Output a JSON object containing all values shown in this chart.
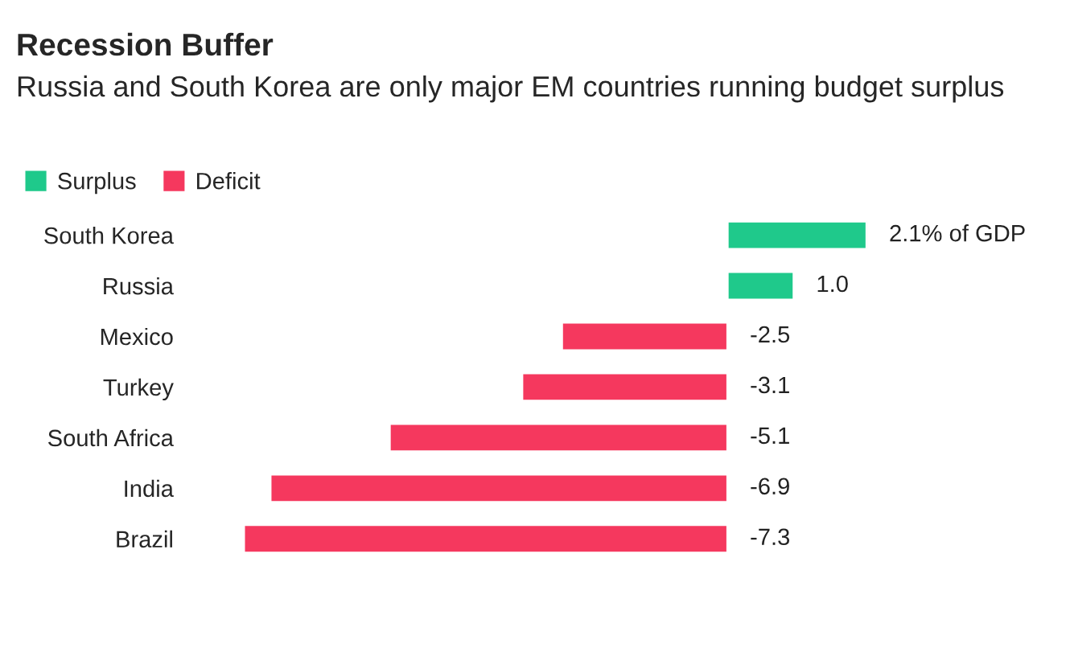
{
  "chart_data": {
    "type": "bar",
    "orientation": "horizontal",
    "title": "Recession Buffer",
    "subtitle": "Russia and South Korea are only major EM countries running budget surplus",
    "categories": [
      "South Korea",
      "Russia",
      "Mexico",
      "Turkey",
      "South Africa",
      "India",
      "Brazil"
    ],
    "series": [
      {
        "name": "Surplus",
        "color": "#1fc98b",
        "values": [
          2.1,
          1.0,
          null,
          null,
          null,
          null,
          null
        ],
        "value_labels": [
          "2.1% of GDP",
          "1.0",
          null,
          null,
          null,
          null,
          null
        ]
      },
      {
        "name": "Deficit",
        "color": "#f5385e",
        "values": [
          null,
          null,
          -2.5,
          -3.1,
          -5.1,
          -6.9,
          -7.3
        ],
        "value_labels": [
          null,
          null,
          "-2.5",
          "-3.1",
          "-5.1",
          "-6.9",
          "-7.3"
        ]
      }
    ],
    "legend": "top left",
    "grid": false
  }
}
